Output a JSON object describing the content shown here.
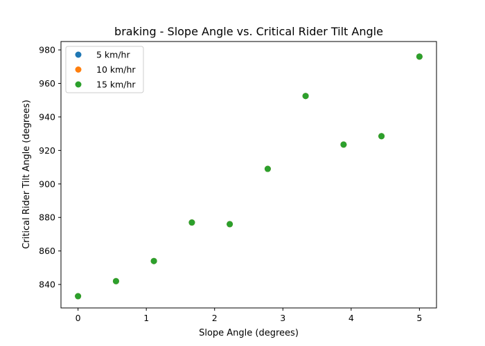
{
  "chart_data": {
    "type": "scatter",
    "title": "braking - Slope Angle vs. Critical Rider Tilt Angle",
    "xlabel": "Slope Angle (degrees)",
    "ylabel": "Critical Rider Tilt Angle (degrees)",
    "xlim": [
      -0.25,
      5.25
    ],
    "ylim": [
      826,
      985
    ],
    "xticks": [
      0,
      1,
      2,
      3,
      4,
      5
    ],
    "xtick_labels": [
      "0",
      "1",
      "2",
      "3",
      "4",
      "5"
    ],
    "yticks": [
      840,
      860,
      880,
      900,
      920,
      940,
      960,
      980
    ],
    "ytick_labels": [
      "840",
      "860",
      "880",
      "900",
      "920",
      "940",
      "960",
      "980"
    ],
    "grid": false,
    "legend_position": "top-left",
    "series": [
      {
        "name": "5 km/hr",
        "color": "#1f77b4",
        "x": [
          0,
          0.556,
          1.111,
          1.667,
          2.222,
          2.778,
          3.333,
          3.889,
          4.444,
          5.0
        ],
        "y": [
          833,
          842,
          854,
          877,
          876,
          909,
          952.5,
          923.5,
          928.5,
          976
        ]
      },
      {
        "name": "10 km/hr",
        "color": "#ff7f0e",
        "x": [
          0,
          0.556,
          1.111,
          1.667,
          2.222,
          2.778,
          3.333,
          3.889,
          4.444,
          5.0
        ],
        "y": [
          833,
          842,
          854,
          877,
          876,
          909,
          952.5,
          923.5,
          928.5,
          976
        ]
      },
      {
        "name": "15 km/hr",
        "color": "#2ca02c",
        "x": [
          0,
          0.556,
          1.111,
          1.667,
          2.222,
          2.778,
          3.333,
          3.889,
          4.444,
          5.0
        ],
        "y": [
          833,
          842,
          854,
          877,
          876,
          909,
          952.5,
          923.5,
          928.5,
          976
        ]
      }
    ]
  }
}
